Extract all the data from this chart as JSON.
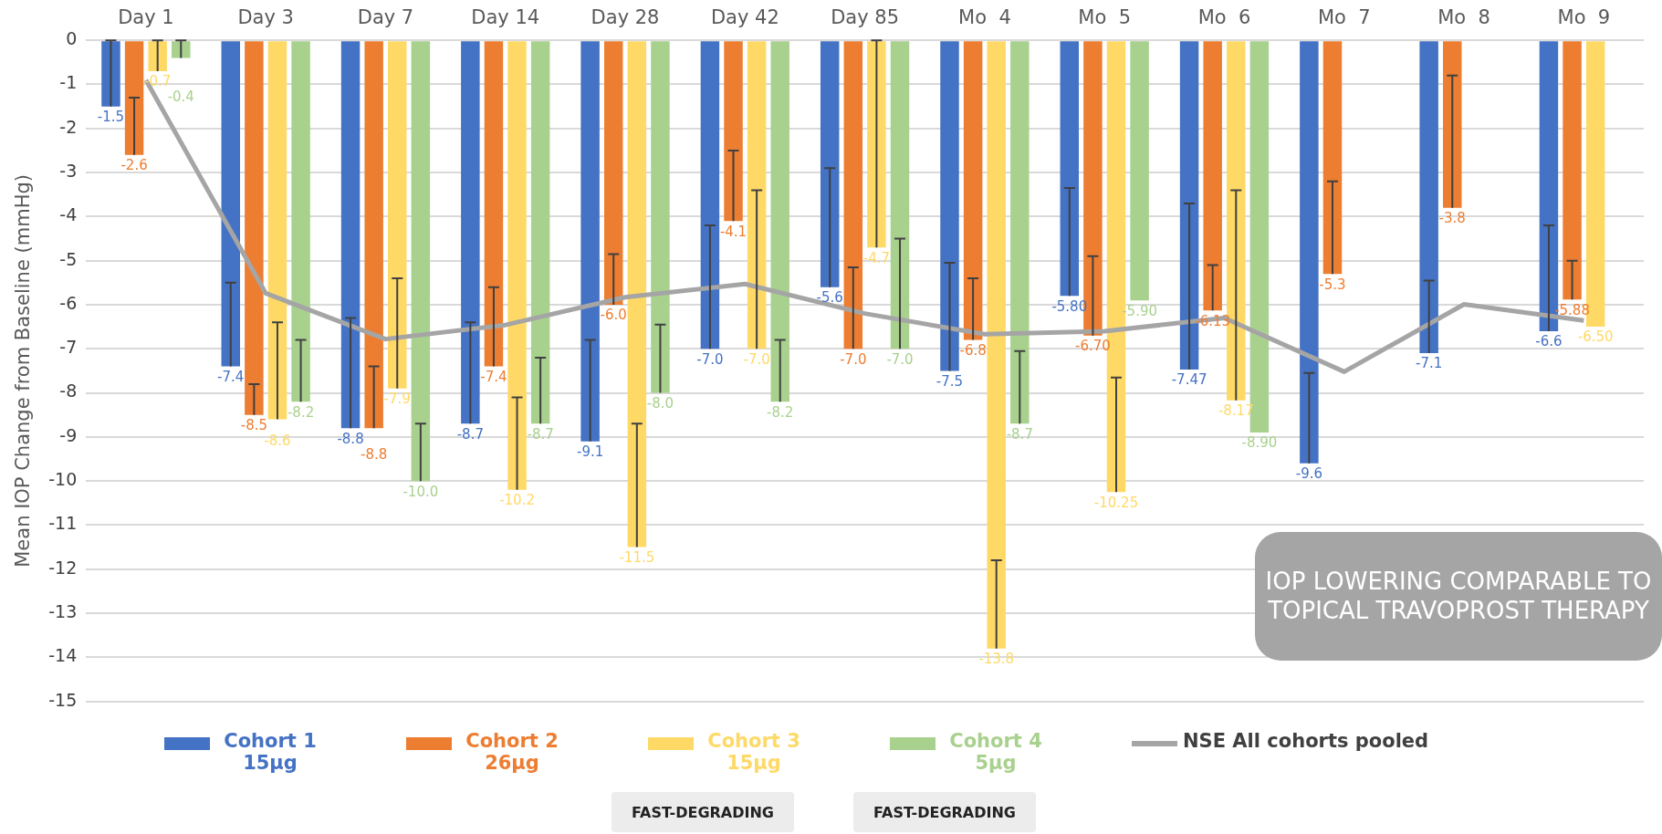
{
  "chart_data": {
    "type": "bar",
    "ylabel": "Mean IOP Change from Baseline (mmHg)",
    "categories": [
      "Day 1",
      "Day 3",
      "Day 7",
      "Day 14",
      "Day 28",
      "Day 42",
      "Day 85",
      "Mo  4",
      "Mo  5",
      "Mo  6",
      "Mo  7",
      "Mo  8",
      "Mo  9"
    ],
    "series": [
      {
        "name": "Cohort 1 15µg",
        "color": "#4472c4",
        "values": [
          -1.5,
          -7.4,
          -8.8,
          -8.7,
          -9.1,
          -7.0,
          -5.6,
          -7.5,
          -5.8,
          -7.47,
          -9.6,
          -7.1,
          -6.6
        ],
        "value_labels": [
          "-1.5",
          "-7.4",
          "-8.8",
          "-8.7",
          "-9.1",
          "-7.0",
          "-5.6",
          "-7.5",
          "-5.80",
          "-7.47",
          "-9.6",
          "-7.1",
          "-6.6"
        ],
        "errors": [
          [
            -1.5,
            0
          ],
          [
            -7.4,
            -5.5
          ],
          [
            -8.8,
            -6.3
          ],
          [
            -8.7,
            -6.4
          ],
          [
            -9.1,
            -6.8
          ],
          [
            -7.0,
            -4.2
          ],
          [
            -5.6,
            -2.9
          ],
          [
            -7.5,
            -5.05
          ],
          [
            -5.8,
            -3.35
          ],
          [
            -7.47,
            -3.7
          ],
          [
            -9.6,
            -7.55
          ],
          [
            -7.1,
            -5.45
          ],
          [
            -6.6,
            -4.2
          ]
        ]
      },
      {
        "name": "Cohort 2 26µg",
        "color": "#ed7d31",
        "values": [
          -2.6,
          -8.5,
          -8.8,
          -7.4,
          -6.0,
          -4.1,
          -7.0,
          -6.8,
          -6.7,
          -6.13,
          -5.3,
          -3.8,
          -5.88
        ],
        "value_labels": [
          "-2.6",
          "-8.5",
          "-8.8",
          "-7.4",
          "-6.0",
          "-4.1",
          "-7.0",
          "-6.8",
          "-6.70",
          "-6.13",
          "-5.3",
          "-3.8",
          "-5.88"
        ],
        "errors": [
          [
            -2.6,
            -1.3
          ],
          [
            -8.5,
            -7.8
          ],
          [
            -8.8,
            -7.4
          ],
          [
            -7.4,
            -5.6
          ],
          [
            -6.0,
            -4.85
          ],
          [
            -4.1,
            -2.5
          ],
          [
            -7.0,
            -5.15
          ],
          [
            -6.8,
            -5.4
          ],
          [
            -6.7,
            -4.9
          ],
          [
            -6.13,
            -5.1
          ],
          [
            -5.3,
            -3.2
          ],
          [
            -3.8,
            -0.8
          ],
          [
            -5.88,
            -5.0
          ]
        ]
      },
      {
        "name": "Cohort 3 15µg",
        "color": "#ffd966",
        "values": [
          -0.7,
          -8.6,
          -7.9,
          -10.2,
          -11.5,
          -7.0,
          -4.7,
          -13.8,
          -10.25,
          -8.17,
          null,
          null,
          -6.5
        ],
        "value_labels": [
          "-0.7",
          "-8.6",
          "-7.9",
          "-10.2",
          "-11.5",
          "-7.0",
          "-4.7",
          "-13.8",
          "-10.25",
          "-8.17",
          null,
          null,
          "-6.50"
        ],
        "errors": [
          [
            -0.7,
            0
          ],
          [
            -8.6,
            -6.4
          ],
          [
            -7.9,
            -5.4
          ],
          [
            -10.2,
            -8.1
          ],
          [
            -11.5,
            -8.7
          ],
          [
            -7.0,
            -3.4
          ],
          [
            -4.7,
            0
          ],
          [
            -13.8,
            -11.8
          ],
          [
            -10.25,
            -7.65
          ],
          [
            -8.17,
            -3.4
          ],
          null,
          null,
          null
        ]
      },
      {
        "name": "Cohort 4 5µg",
        "color": "#a9d18e",
        "values": [
          -0.4,
          -8.2,
          -10.0,
          -8.7,
          -8.0,
          -8.2,
          -7.0,
          -8.7,
          -5.9,
          -8.9,
          null,
          null,
          null
        ],
        "value_labels": [
          "-0.4",
          "-8.2",
          "-10.0",
          "-8.7",
          "-8.0",
          "-8.2",
          "-7.0",
          "-8.7",
          "-5.90",
          "-8.90",
          null,
          null,
          null
        ],
        "errors": [
          [
            -0.4,
            0
          ],
          [
            -8.2,
            -6.8
          ],
          [
            -10.0,
            -8.7
          ],
          [
            -8.7,
            -7.2
          ],
          [
            -8.0,
            -6.45
          ],
          [
            -8.2,
            -6.8
          ],
          [
            -7.0,
            -4.5
          ],
          [
            -8.7,
            -7.05
          ],
          null,
          null,
          null,
          null,
          null
        ]
      },
      {
        "name": "NSE All cohorts pooled",
        "type": "line",
        "color": "#a5a5a5",
        "values": [
          -0.9,
          -5.74,
          -6.78,
          -6.46,
          -5.83,
          -5.53,
          -6.2,
          -6.67,
          -6.6,
          -6.3,
          -7.52,
          -5.99,
          -6.36
        ]
      }
    ],
    "ylim": [
      -15,
      0
    ],
    "yticks": [
      0,
      -1,
      -2,
      -3,
      -4,
      -5,
      -6,
      -7,
      -8,
      -9,
      -10,
      -11,
      -12,
      -13,
      -14,
      -15
    ],
    "grid": "y",
    "legend": "bottom",
    "marker": "none",
    "annotations": [
      "FAST-DEGRADING",
      "FAST-DEGRADING",
      "IOP LOWERING COMPARABLE TO TOPICAL TRAVOPROST THERAPY"
    ]
  }
}
